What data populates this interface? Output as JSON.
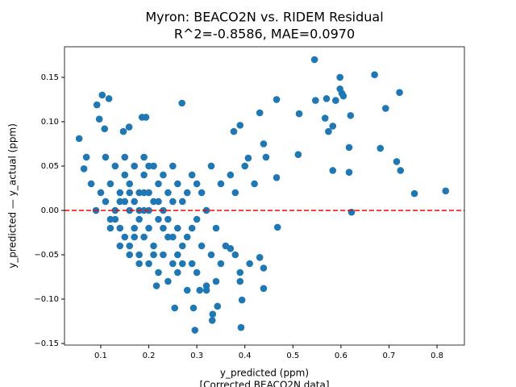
{
  "chart_data": {
    "type": "scatter",
    "title": [
      "Myron: BEACO2N vs. RIDEM Residual",
      "R^2=-0.8586, MAE=0.0970"
    ],
    "x_label": [
      "y_predicted (ppm)",
      "[Corrected BEACO2N data]"
    ],
    "y_label": "y_predicted — y_actual (ppm)",
    "xlim": [
      0.0245,
      0.857
    ],
    "ylim": [
      -0.1518,
      0.1845
    ],
    "xticks": [
      0.1,
      0.2,
      0.3,
      0.4,
      0.5,
      0.6,
      0.7,
      0.8
    ],
    "yticks": [
      {
        "value": -0.15,
        "label": "−0.15"
      },
      {
        "value": -0.1,
        "label": "−0.10"
      },
      {
        "value": -0.05,
        "label": "−0.05"
      },
      {
        "value": 0,
        "label": "0.00"
      },
      0.05,
      {
        "value": 0.1,
        "label": "0.10"
      },
      0.15
    ],
    "reference_line": {
      "y": 0,
      "color": "#ff0000",
      "style": "dashed"
    },
    "series": [
      {
        "color": "#1f77b4",
        "x": [
          0.818,
          0.753,
          0.724,
          0.716,
          0.693,
          0.722,
          0.67,
          0.682,
          0.62,
          0.622,
          0.617,
          0.617,
          0.598,
          0.602,
          0.598,
          0.605,
          0.589,
          0.583,
          0.57,
          0.567,
          0.574,
          0.545,
          0.547,
          0.583,
          0.511,
          0.513,
          0.466,
          0.466,
          0.468,
          0.431,
          0.439,
          0.444,
          0.39,
          0.377,
          0.407,
          0.055,
          0.103,
          0.117,
          0.092,
          0.269,
          0.186,
          0.194,
          0.159,
          0.147,
          0.108,
          0.097,
          0.065,
          0.296,
          0.333,
          0.392,
          0.332,
          0.254,
          0.293,
          0.343,
          0.394,
          0.439,
          0.439,
          0.431,
          0.216,
          0.306,
          0.32,
          0.39,
          0.37,
          0.1,
          0.11,
          0.12,
          0.12,
          0.13,
          0.13,
          0.14,
          0.14,
          0.15,
          0.15,
          0.15,
          0.16,
          0.16,
          0.16,
          0.17,
          0.17,
          0.17,
          0.18,
          0.18,
          0.18,
          0.19,
          0.19,
          0.19,
          0.2,
          0.2,
          0.2,
          0.21,
          0.21,
          0.21,
          0.22,
          0.22,
          0.22,
          0.23,
          0.23,
          0.23,
          0.24,
          0.24,
          0.24,
          0.25,
          0.25,
          0.25,
          0.26,
          0.26,
          0.26,
          0.27,
          0.27,
          0.28,
          0.28,
          0.28,
          0.29,
          0.29,
          0.3,
          0.3,
          0.3,
          0.31,
          0.31,
          0.32,
          0.32,
          0.33,
          0.33,
          0.34,
          0.34,
          0.35,
          0.35,
          0.36,
          0.37,
          0.38,
          0.38,
          0.39,
          0.4,
          0.41,
          0.42,
          0.08,
          0.09,
          0.07,
          0.11,
          0.12,
          0.14,
          0.16,
          0.18,
          0.19,
          0.2,
          0.21,
          0.17,
          0.15,
          0.13,
          0.22,
          0.19,
          0.18,
          0.2,
          0.24,
          0.26,
          0.23,
          0.27,
          0.16,
          0.14,
          0.25,
          0.29
        ],
        "values": [
          0.022,
          0.019,
          0.045,
          0.055,
          0.115,
          0.133,
          0.153,
          0.07,
          0.107,
          -0.002,
          0.071,
          0.043,
          0.15,
          0.132,
          0.137,
          0.129,
          0.124,
          0.095,
          0.126,
          0.104,
          0.089,
          0.17,
          0.124,
          0.045,
          0.063,
          0.109,
          0.125,
          0.037,
          -0.019,
          0.11,
          0.075,
          0.06,
          0.096,
          0.089,
          0.059,
          0.081,
          0.13,
          0.126,
          0.119,
          0.121,
          0.105,
          0.105,
          0.094,
          0.089,
          0.092,
          0.103,
          0.047,
          -0.135,
          -0.117,
          -0.132,
          -0.124,
          -0.11,
          -0.11,
          -0.108,
          -0.101,
          -0.088,
          -0.065,
          -0.053,
          -0.085,
          -0.09,
          -0.085,
          -0.08,
          -0.043,
          0.02,
          0.01,
          0.03,
          -0.01,
          0.0,
          0.05,
          -0.02,
          0.02,
          0.04,
          -0.03,
          0.01,
          -0.04,
          0.0,
          0.03,
          -0.02,
          0.05,
          0.01,
          -0.05,
          0.02,
          -0.01,
          0.04,
          -0.03,
          0.0,
          -0.06,
          0.02,
          -0.02,
          0.05,
          -0.04,
          0.01,
          -0.07,
          0.03,
          -0.01,
          0.0,
          -0.05,
          0.04,
          -0.03,
          0.02,
          -0.08,
          0.01,
          -0.06,
          0.05,
          -0.02,
          0.03,
          -0.07,
          -0.04,
          0.01,
          -0.09,
          0.02,
          -0.03,
          0.04,
          -0.06,
          -0.01,
          0.03,
          -0.07,
          -0.04,
          0.02,
          -0.09,
          0.0,
          -0.05,
          0.05,
          -0.02,
          -0.08,
          0.03,
          -0.06,
          -0.04,
          0.04,
          -0.05,
          0.02,
          -0.07,
          0.05,
          -0.06,
          0.03,
          0.03,
          0.0,
          0.06,
          0.06,
          -0.02,
          -0.04,
          -0.05,
          -0.06,
          0.06,
          0.05,
          -0.05,
          -0.03,
          0.06,
          -0.01,
          0.01,
          0.02,
          0.0,
          0.0,
          -0.01,
          -0.05,
          -0.02,
          -0.06,
          0.02,
          0.01,
          -0.03,
          -0.02
        ]
      }
    ]
  }
}
